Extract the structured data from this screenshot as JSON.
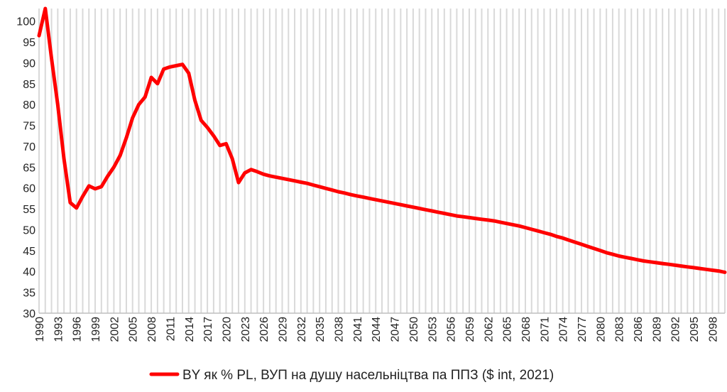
{
  "chart_data": {
    "type": "line",
    "title": "",
    "xlabel": "",
    "ylabel": "",
    "xlim": [
      1990,
      2100
    ],
    "ylim": [
      30,
      103
    ],
    "y_ticks": [
      30,
      35,
      40,
      45,
      50,
      55,
      60,
      65,
      70,
      75,
      80,
      85,
      90,
      95,
      100
    ],
    "x_tick_labels": [
      "1990",
      "1993",
      "1996",
      "1999",
      "2002",
      "2005",
      "2008",
      "2011",
      "2014",
      "2017",
      "2020",
      "2023",
      "2026",
      "2029",
      "2032",
      "2035",
      "2038",
      "2041",
      "2044",
      "2047",
      "2050",
      "2053",
      "2056",
      "2059",
      "2062",
      "2065",
      "2068",
      "2071",
      "2074",
      "2077",
      "2080",
      "2083",
      "2086",
      "2089",
      "2092",
      "2095",
      "2098"
    ],
    "grid": "vertical",
    "legend_position": "bottom",
    "colors": {
      "series": "#ff0000",
      "grid": "#d9d9d9",
      "axis": "#bfbfbf"
    },
    "series": [
      {
        "name": "BY як % PL, ВУП на душу насельніцтва па ППЗ ($ int, 2021)",
        "x": [
          1990,
          1991,
          1992,
          1993,
          1994,
          1995,
          1996,
          1997,
          1998,
          1999,
          2000,
          2001,
          2002,
          2003,
          2004,
          2005,
          2006,
          2007,
          2008,
          2009,
          2010,
          2011,
          2012,
          2013,
          2014,
          2015,
          2016,
          2017,
          2018,
          2019,
          2020,
          2021,
          2022,
          2023,
          2024,
          2025,
          2026,
          2027,
          2028,
          2029,
          2030,
          2031,
          2032,
          2033,
          2034,
          2035,
          2036,
          2037,
          2038,
          2039,
          2040,
          2041,
          2042,
          2043,
          2044,
          2045,
          2046,
          2047,
          2048,
          2049,
          2050,
          2051,
          2052,
          2053,
          2054,
          2055,
          2056,
          2057,
          2058,
          2059,
          2060,
          2061,
          2062,
          2063,
          2064,
          2065,
          2066,
          2067,
          2068,
          2069,
          2070,
          2071,
          2072,
          2073,
          2074,
          2075,
          2076,
          2077,
          2078,
          2079,
          2080,
          2081,
          2082,
          2083,
          2084,
          2085,
          2086,
          2087,
          2088,
          2089,
          2090,
          2091,
          2092,
          2093,
          2094,
          2095,
          2096,
          2097,
          2098,
          2099,
          2100
        ],
        "values": [
          96.5,
          103.0,
          91.0,
          80.0,
          67.0,
          56.5,
          55.2,
          58.0,
          60.5,
          59.8,
          60.3,
          62.8,
          65.0,
          67.8,
          72.0,
          76.8,
          80.0,
          81.8,
          86.5,
          85.0,
          88.5,
          89.0,
          89.3,
          89.6,
          87.5,
          81.0,
          76.2,
          74.5,
          72.5,
          70.2,
          70.6,
          67.0,
          61.3,
          63.6,
          64.4,
          63.9,
          63.3,
          62.9,
          62.6,
          62.3,
          62.0,
          61.7,
          61.4,
          61.1,
          60.7,
          60.3,
          59.9,
          59.5,
          59.1,
          58.8,
          58.4,
          58.1,
          57.8,
          57.5,
          57.2,
          56.9,
          56.6,
          56.3,
          56.0,
          55.7,
          55.4,
          55.1,
          54.8,
          54.5,
          54.2,
          53.9,
          53.6,
          53.3,
          53.1,
          52.9,
          52.7,
          52.5,
          52.3,
          52.1,
          51.8,
          51.5,
          51.2,
          50.9,
          50.5,
          50.1,
          49.7,
          49.3,
          48.9,
          48.4,
          48.0,
          47.5,
          47.0,
          46.5,
          46.0,
          45.5,
          45.0,
          44.5,
          44.1,
          43.7,
          43.4,
          43.1,
          42.8,
          42.5,
          42.3,
          42.1,
          41.9,
          41.7,
          41.5,
          41.3,
          41.1,
          40.9,
          40.7,
          40.5,
          40.3,
          40.1,
          39.8
        ]
      }
    ]
  }
}
